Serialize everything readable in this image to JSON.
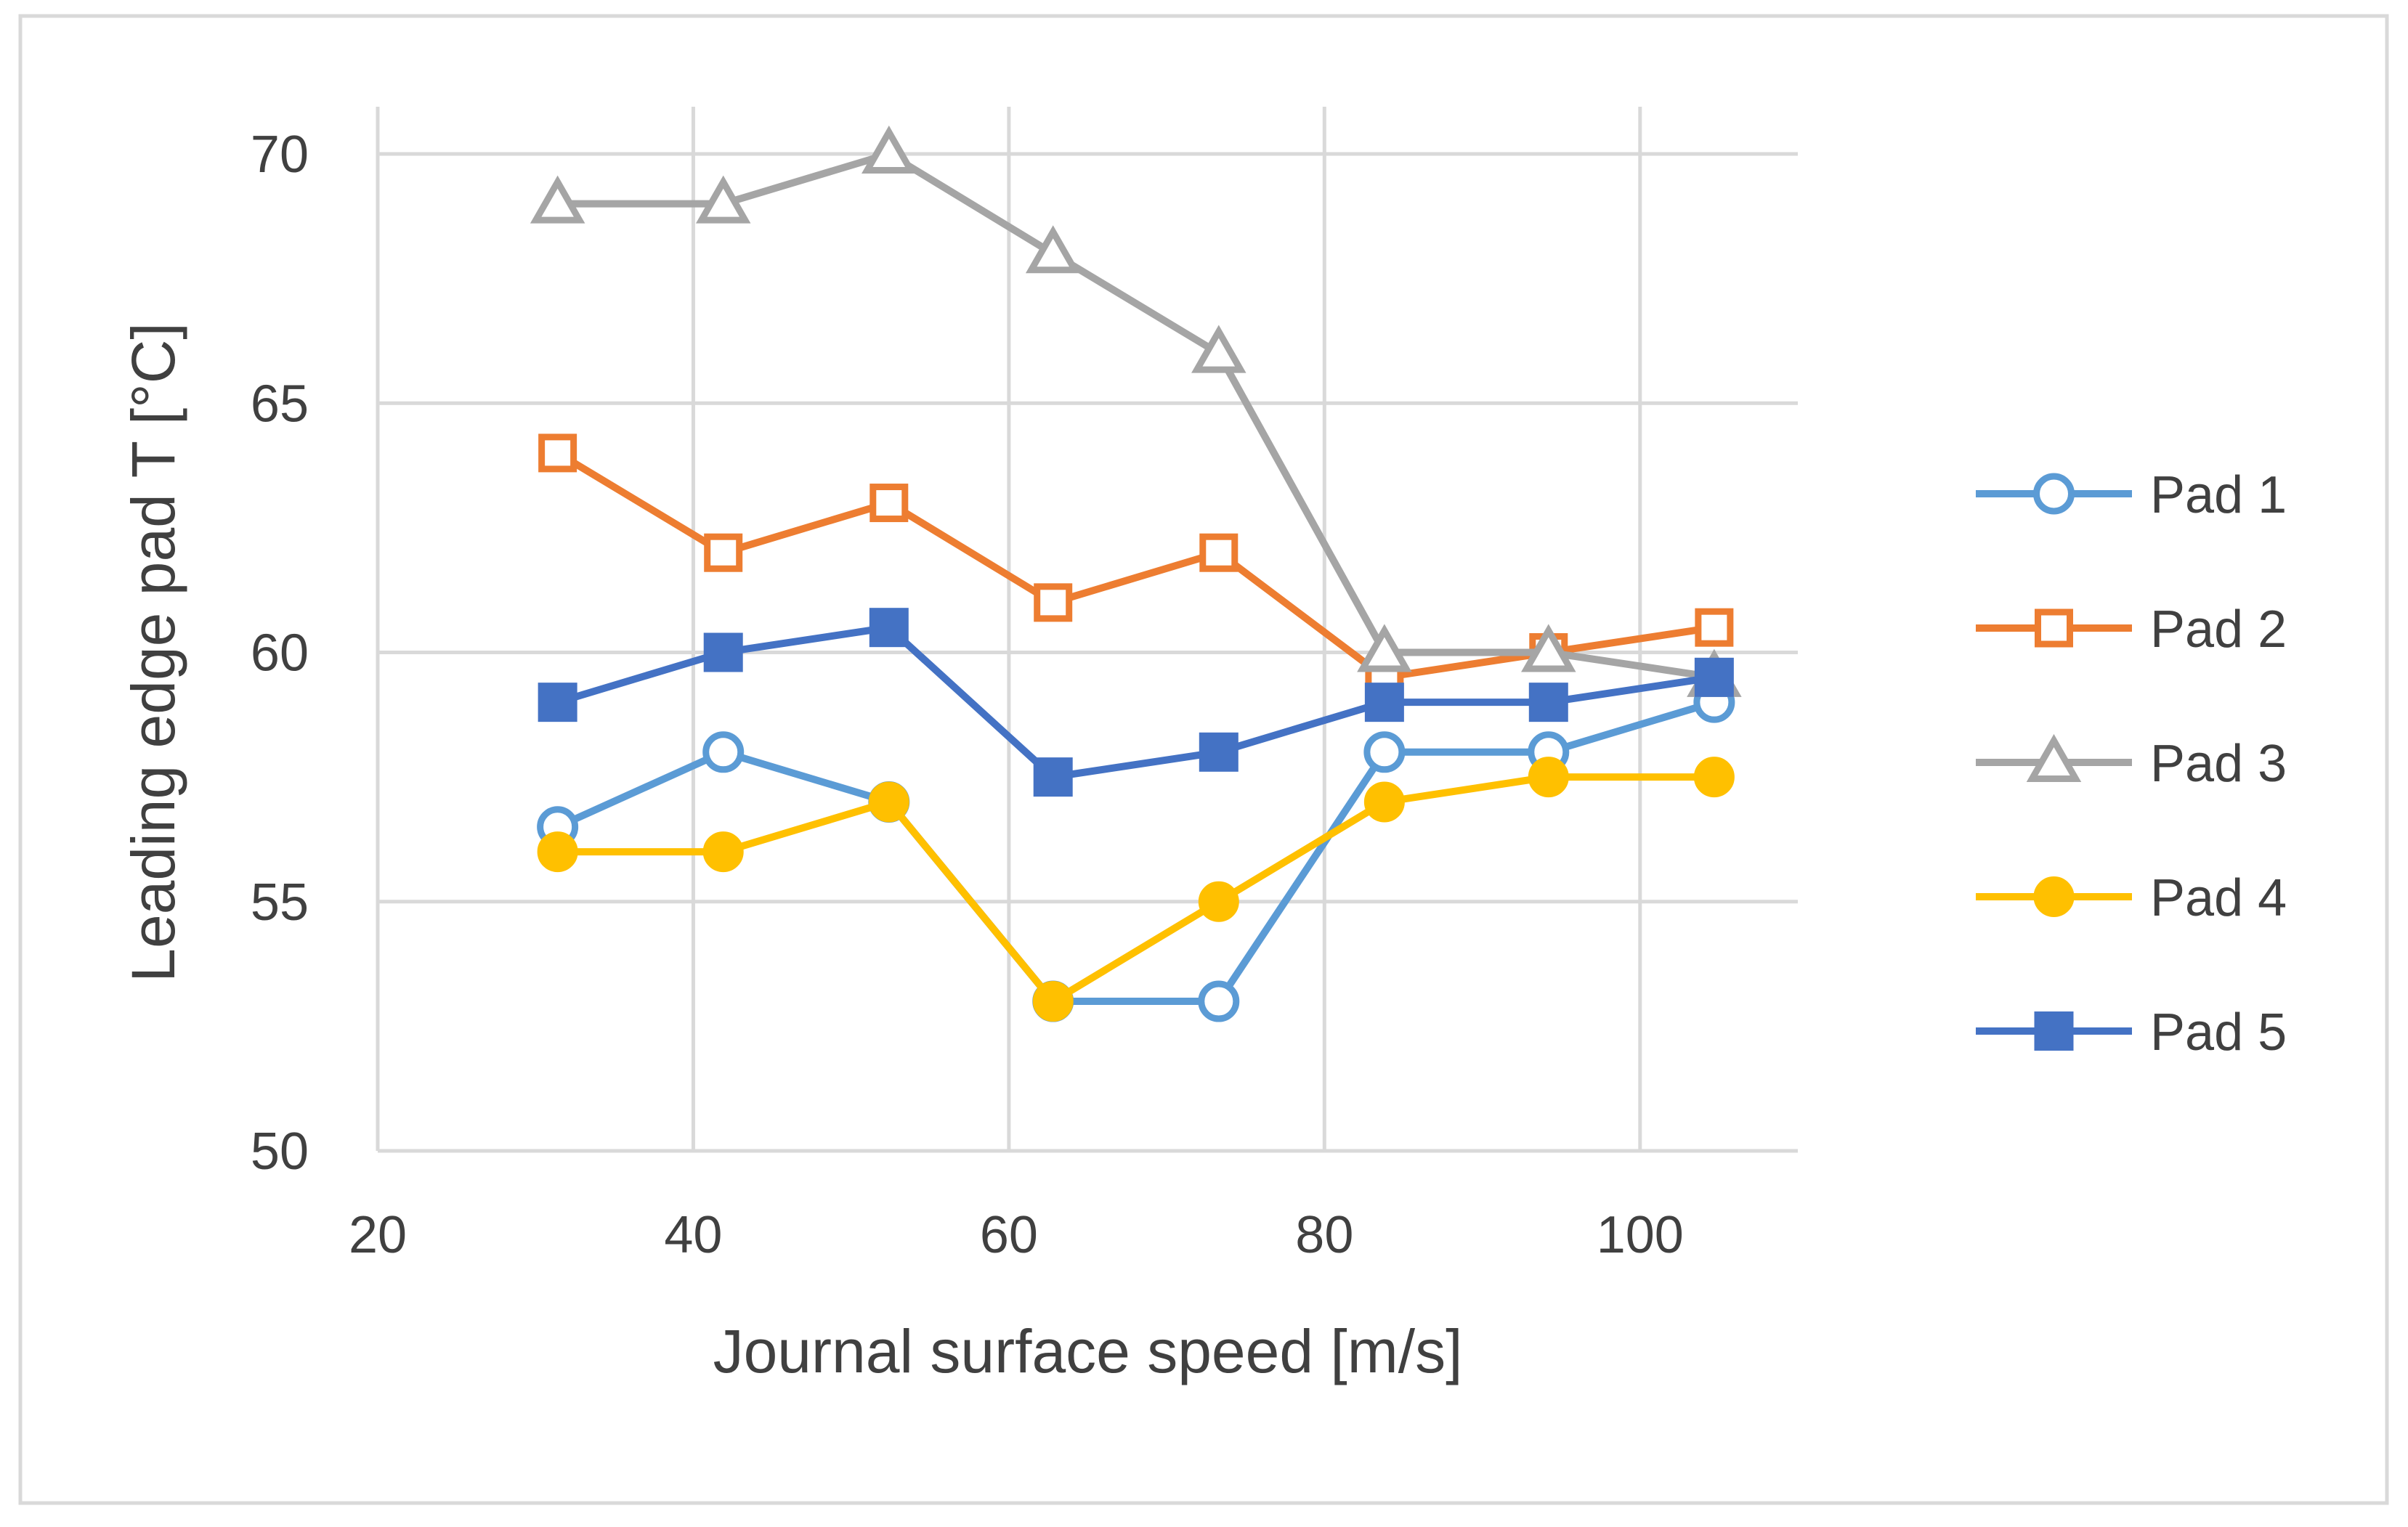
{
  "chart_data": {
    "type": "line",
    "title": "",
    "xlabel": "Journal surface speed [m/s]",
    "ylabel": "Leading edge pad T [°C]",
    "xlim": [
      20,
      110
    ],
    "ylim": [
      50,
      70
    ],
    "xticks": [
      20,
      40,
      60,
      80,
      100
    ],
    "yticks": [
      50,
      55,
      60,
      65,
      70
    ],
    "grid": true,
    "legend_position": "right",
    "x": [
      31.4,
      41.9,
      52.4,
      62.8,
      73.3,
      83.8,
      94.2,
      104.7
    ],
    "series": [
      {
        "name": "Pad 1",
        "color": "#5B9BD5",
        "marker": "circle-open",
        "values": [
          56.5,
          58,
          57,
          53,
          53,
          58,
          58,
          59
        ]
      },
      {
        "name": "Pad 2",
        "color": "#ED7D31",
        "marker": "square-open",
        "values": [
          64,
          62,
          63,
          61,
          62,
          59.5,
          60,
          60.5
        ]
      },
      {
        "name": "Pad 3",
        "color": "#A5A5A5",
        "marker": "triangle-open",
        "values": [
          69,
          69,
          70,
          68,
          66,
          60,
          60,
          59.5
        ]
      },
      {
        "name": "Pad 4",
        "color": "#FFC000",
        "marker": "circle-filled",
        "values": [
          56,
          56,
          57,
          53,
          55,
          57,
          57.5,
          57.5
        ]
      },
      {
        "name": "Pad 5",
        "color": "#4472C4",
        "marker": "square-filled",
        "values": [
          59,
          60,
          60.5,
          57.5,
          58,
          59,
          59,
          59.5
        ]
      }
    ]
  }
}
